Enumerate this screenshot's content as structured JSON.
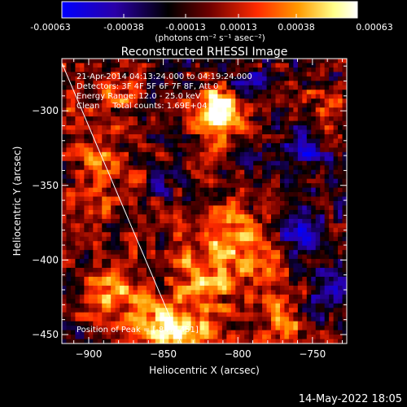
{
  "chart_data": {
    "type": "heatmap",
    "title": "Reconstructed RHESSI Image",
    "xlabel": "Heliocentric X (arcsec)",
    "ylabel": "Heliocentric Y (arcsec)",
    "xlim": [
      -918,
      -727
    ],
    "ylim": [
      -456,
      -265
    ],
    "xticks": [
      -900,
      -850,
      -800,
      -750
    ],
    "yticks": [
      -300,
      -350,
      -400,
      -450
    ],
    "colorbar": {
      "range": [
        -0.00063,
        0.00063
      ],
      "ticks": [
        "-0.00063",
        "-0.00038",
        "-0.00013",
        "0.00013",
        "0.00038",
        "0.00063"
      ],
      "units_label": "(photons cm⁻² s⁻¹ asec⁻²)",
      "colormap": [
        "#0000ff",
        "#2a00a8",
        "#000000",
        "#6e0000",
        "#ff2a00",
        "#ff9a00",
        "#ffff8a",
        "#ffffff"
      ]
    },
    "annotations": {
      "time_range": "21-Apr-2014 04:13:24.000 to 04:19:24.000",
      "detectors": "Detectors: 3F 4F 5F 6F 7F 8F, Att 0",
      "energy": "Energy Range: 12.0 - 25.0 keV",
      "clean": "Clean     Total counts: 1.69E+04",
      "peak": "Position of Peak = [-847,-451]"
    },
    "peak": {
      "x": -847,
      "y": -451
    },
    "sources": [
      {
        "x": -812,
        "y": -300,
        "sx": 12,
        "sy": 14,
        "amp": 0.00075
      },
      {
        "x": -880,
        "y": -286,
        "sx": 10,
        "sy": 8,
        "amp": 0.00035
      },
      {
        "x": -742,
        "y": -297,
        "sx": 10,
        "sy": 16,
        "amp": 0.0003
      },
      {
        "x": -845,
        "y": -447,
        "sx": 16,
        "sy": 10,
        "amp": 0.0008
      },
      {
        "x": -882,
        "y": -423,
        "sx": 16,
        "sy": 14,
        "amp": 0.00048
      },
      {
        "x": -806,
        "y": -378,
        "sx": 14,
        "sy": 12,
        "amp": 0.00042
      },
      {
        "x": -900,
        "y": -368,
        "sx": 10,
        "sy": 14,
        "amp": 0.00034
      },
      {
        "x": -825,
        "y": -418,
        "sx": 14,
        "sy": 16,
        "amp": 0.0004
      },
      {
        "x": -783,
        "y": -397,
        "sx": 10,
        "sy": 12,
        "amp": 0.00032
      },
      {
        "x": -892,
        "y": -330,
        "sx": 8,
        "sy": 8,
        "amp": 0.00025
      },
      {
        "x": -770,
        "y": -445,
        "sx": 8,
        "sy": 10,
        "amp": 0.00028
      }
    ],
    "negative_regions": [
      {
        "x": -760,
        "y": -382,
        "sx": 12,
        "sy": 10,
        "amp": -0.00045
      },
      {
        "x": -755,
        "y": -325,
        "sx": 10,
        "sy": 10,
        "amp": -0.00035
      },
      {
        "x": -850,
        "y": -350,
        "sx": 10,
        "sy": 10,
        "amp": -0.0003
      },
      {
        "x": -798,
        "y": -280,
        "sx": 10,
        "sy": 8,
        "amp": -0.00028
      },
      {
        "x": -740,
        "y": -420,
        "sx": 8,
        "sy": 12,
        "amp": -0.0003
      }
    ],
    "grid": false,
    "legend": "none",
    "limb_line": {
      "x1": -918,
      "y1": -268,
      "x2": -838,
      "y2": -456
    }
  },
  "footer": {
    "date": "14-May-2022 18:05"
  }
}
